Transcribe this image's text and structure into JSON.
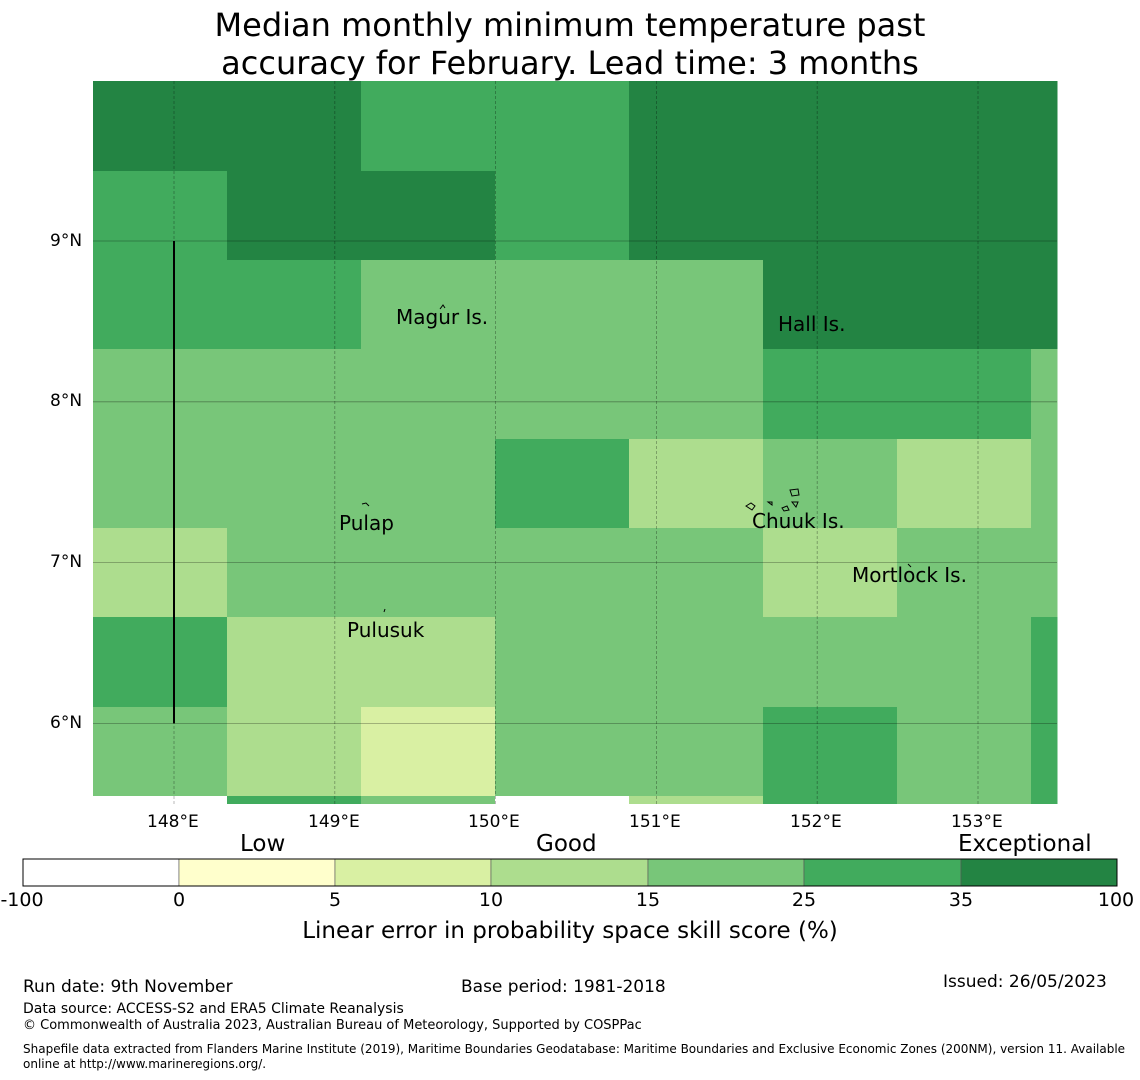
{
  "title_line1": "Median monthly minimum temperature past",
  "title_line2": "accuracy for February. Lead time: 3 months",
  "map": {
    "lon_range": [
      147.5,
      153.5
    ],
    "lat_range": [
      5.5,
      10.0
    ],
    "lon_ticks": [
      {
        "value": 148,
        "label": "148°E"
      },
      {
        "value": 149,
        "label": "149°E"
      },
      {
        "value": 150,
        "label": "150°E"
      },
      {
        "value": 151,
        "label": "151°E"
      },
      {
        "value": 152,
        "label": "152°E"
      },
      {
        "value": 153,
        "label": "153°E"
      }
    ],
    "lat_ticks": [
      {
        "value": 9,
        "label": "9°N"
      },
      {
        "value": 8,
        "label": "8°N"
      },
      {
        "value": 7,
        "label": "7°N"
      },
      {
        "value": 6,
        "label": "6°N"
      }
    ],
    "grid_cell_deg": 0.833,
    "skill_grid_rows_north_to_south": [
      [
        6,
        6,
        5,
        5,
        6,
        6,
        6,
        6
      ],
      [
        5,
        6,
        6,
        5,
        6,
        6,
        6,
        6
      ],
      [
        5,
        5,
        4,
        4,
        4,
        6,
        6,
        6
      ],
      [
        4,
        4,
        4,
        4,
        4,
        5,
        5,
        4
      ],
      [
        4,
        4,
        4,
        5,
        3,
        4,
        3,
        4
      ],
      [
        3,
        4,
        4,
        4,
        4,
        3,
        4,
        4
      ],
      [
        5,
        3,
        3,
        4,
        4,
        4,
        4,
        5
      ],
      [
        4,
        3,
        2,
        4,
        4,
        5,
        4,
        5
      ]
    ],
    "bottom_strip_classes": [
      0,
      5,
      4,
      0,
      3,
      5,
      4,
      5
    ],
    "places": [
      {
        "name": "Magur Is.",
        "lon": 149.5,
        "lat": 8.55
      },
      {
        "name": "Hall Is.",
        "lon": 152.0,
        "lat": 8.5
      },
      {
        "name": "Pulap",
        "lon": 149.2,
        "lat": 7.35
      },
      {
        "name": "Chuuk Is.",
        "lon": 151.7,
        "lat": 7.4
      },
      {
        "name": "Mortlock Is.",
        "lon": 152.6,
        "lat": 6.95
      },
      {
        "name": "Pulusuk",
        "lon": 149.3,
        "lat": 6.7
      }
    ],
    "eez_line": {
      "lon": 148.0,
      "lat_from": 6.0,
      "lat_to": 9.0
    }
  },
  "colorbar": {
    "categories": [
      {
        "label": "Low"
      },
      {
        "label": "Good"
      },
      {
        "label": "Exceptional"
      }
    ],
    "boundaries": [
      "-100",
      "0",
      "5",
      "10",
      "15",
      "25",
      "35",
      "100"
    ],
    "colors": [
      "#ffffff",
      "#ffffcc",
      "#d9f0a3",
      "#addd8e",
      "#78c679",
      "#41ab5d",
      "#238443"
    ],
    "caption": "Linear error in probability space skill score (%)"
  },
  "footer": {
    "run_date": "Run date: 9th November",
    "base_period": "Base period: 1981-2018",
    "issued": "Issued: 26/05/2023",
    "data_source": "Data source: ACCESS-S2 and ERA5 Climate Reanalysis",
    "copyright": "© Commonwealth of Australia 2023, Australian Bureau of Meteorology, Supported by COSPPac",
    "shapefile_1": "Shapefile data extracted from Flanders Marine Institute (2019), Maritime Boundaries Geodatabase: Maritime Boundaries and Exclusive Economic Zones (200NM), version 11. Available",
    "shapefile_2": "online at http://www.marineregions.org/."
  }
}
